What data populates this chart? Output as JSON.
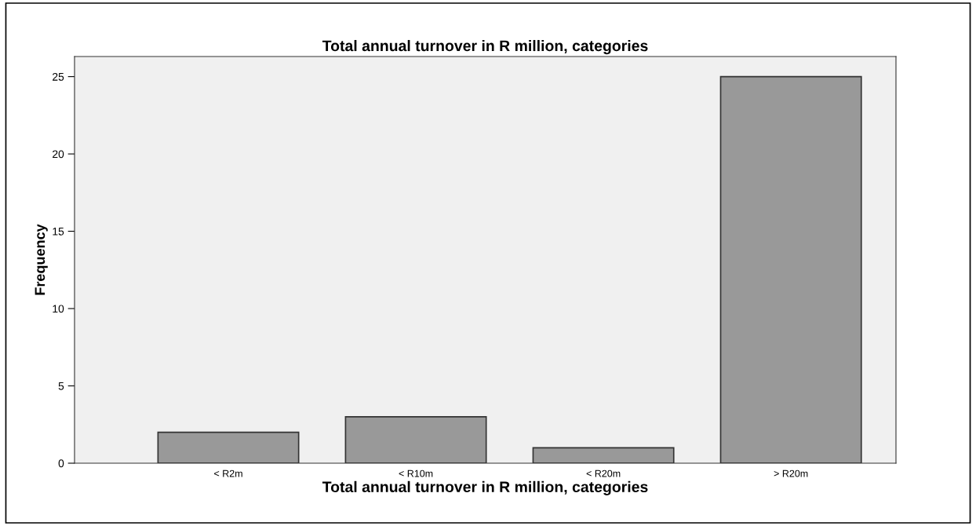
{
  "chart_data": {
    "type": "bar",
    "title": "Total annual turnover in R million, categories",
    "xlabel": "Total annual turnover in R million, categories",
    "ylabel": "Frequency",
    "categories": [
      "< R2m",
      "< R10m",
      "< R20m",
      "> R20m"
    ],
    "values": [
      2,
      3,
      1,
      25
    ],
    "color": "#999999",
    "ylim": [
      0,
      26.3
    ],
    "yticks": [
      0,
      5,
      10,
      15,
      20,
      25
    ],
    "grid": false,
    "legend": false
  }
}
